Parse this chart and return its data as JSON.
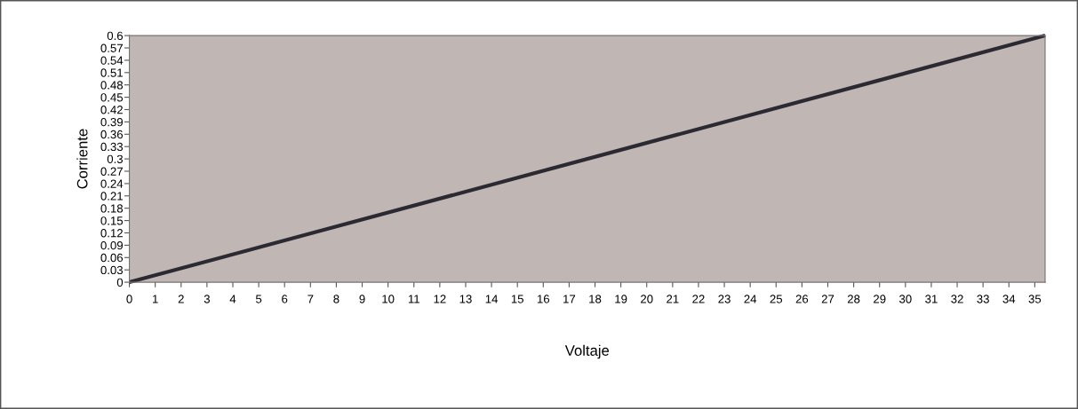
{
  "chart_data": {
    "type": "line",
    "xlabel": "Voltaje",
    "ylabel": "Corriente",
    "x": [
      0,
      35.4
    ],
    "series": [
      {
        "color": "#2b2a33",
        "values": [
          0,
          0.6
        ]
      }
    ],
    "xlim": [
      0,
      35.4
    ],
    "xticks": [
      0,
      1,
      2,
      3,
      4,
      5,
      6,
      7,
      8,
      9,
      10,
      11,
      12,
      13,
      14,
      15,
      16,
      17,
      18,
      19,
      20,
      21,
      22,
      23,
      24,
      25,
      26,
      27,
      28,
      29,
      30,
      31,
      32,
      33,
      34,
      35
    ],
    "ylim": [
      0,
      0.6
    ],
    "yticks": [
      0,
      0.03,
      0.06,
      0.09,
      0.12,
      0.15,
      0.18,
      0.21,
      0.24,
      0.27,
      0.3,
      0.33,
      0.36,
      0.39,
      0.42,
      0.45,
      0.48,
      0.51,
      0.54,
      0.57,
      0.6
    ],
    "grid": false,
    "marker": "none",
    "line_style": "solid"
  }
}
